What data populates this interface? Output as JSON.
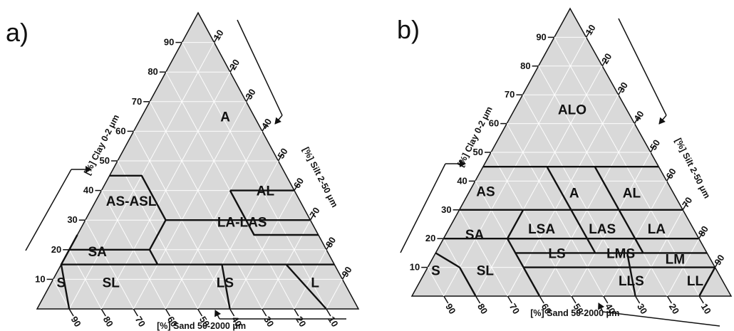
{
  "panels": [
    {
      "id": "a",
      "label": "a)",
      "clay_title": "[%] Clay 0-2 μm",
      "silt_title": "[%] Silt 2-50 μm",
      "sand_title": "[%] Sand 50-2000 μm",
      "clay_ticks": [
        "10",
        "20",
        "30",
        "40",
        "50",
        "60",
        "70",
        "80",
        "90"
      ],
      "silt_ticks": [
        "10",
        "20",
        "30",
        "40",
        "50",
        "60",
        "70",
        "80",
        "90"
      ],
      "sand_ticks": [
        "90",
        "80",
        "70",
        "60",
        "50",
        "40",
        "30",
        "20",
        "10"
      ],
      "regions": [
        {
          "name": "A",
          "clay": 65,
          "silt": 26
        },
        {
          "name": "AL",
          "clay": 40,
          "silt": 51
        },
        {
          "name": "AS-ASL",
          "clay": 36.5,
          "silt": 11
        },
        {
          "name": "LA-LAS",
          "clay": 29.5,
          "silt": 49
        },
        {
          "name": "SA",
          "clay": 19.5,
          "silt": 9
        },
        {
          "name": "SL",
          "clay": 9,
          "silt": 18.5
        },
        {
          "name": "LS",
          "clay": 9,
          "silt": 54
        },
        {
          "name": "L",
          "clay": 9,
          "silt": 82
        },
        {
          "name": "S",
          "clay": 9,
          "silt": 3
        }
      ],
      "boundaries": [
        [
          [
            45,
            0
          ],
          [
            45,
            10
          ],
          [
            30,
            25
          ]
        ],
        [
          [
            40,
            40
          ],
          [
            40,
            60
          ]
        ],
        [
          [
            40,
            40
          ],
          [
            25,
            55
          ],
          [
            25,
            75
          ]
        ],
        [
          [
            30,
            25
          ],
          [
            30,
            70
          ]
        ],
        [
          [
            30,
            25
          ],
          [
            20,
            25
          ],
          [
            20,
            0
          ]
        ],
        [
          [
            20,
            25
          ],
          [
            15,
            30
          ]
        ],
        [
          [
            25,
            0
          ],
          [
            15,
            0
          ],
          [
            15,
            30
          ]
        ],
        [
          [
            15,
            30
          ],
          [
            15,
            85
          ]
        ],
        [
          [
            15,
            0
          ],
          [
            0,
            10
          ]
        ],
        [
          [
            15,
            45
          ],
          [
            15,
            50
          ],
          [
            0,
            60
          ]
        ],
        [
          [
            15,
            70
          ],
          [
            0,
            90
          ]
        ]
      ]
    },
    {
      "id": "b",
      "label": "b)",
      "clay_title": "[%] Clay 0-2 μm",
      "silt_title": "[%] Silt 2-50 μm",
      "sand_title": "[%] Sand 50-2000 μm",
      "clay_ticks": [
        "10",
        "20",
        "30",
        "40",
        "50",
        "60",
        "70",
        "80",
        "90"
      ],
      "silt_ticks": [
        "10",
        "20",
        "30",
        "40",
        "50",
        "60",
        "70",
        "80",
        "90"
      ],
      "sand_ticks": [
        "90",
        "80",
        "70",
        "60",
        "50",
        "40",
        "30",
        "20",
        "10"
      ],
      "regions": [
        {
          "name": "ALO",
          "clay": 65,
          "silt": 18
        },
        {
          "name": "A",
          "clay": 36,
          "silt": 33
        },
        {
          "name": "AL",
          "clay": 36,
          "silt": 51
        },
        {
          "name": "AS",
          "clay": 36.5,
          "silt": 5
        },
        {
          "name": "LSA",
          "clay": 23.5,
          "silt": 29
        },
        {
          "name": "LAS",
          "clay": 23.5,
          "silt": 48
        },
        {
          "name": "LA",
          "clay": 23.5,
          "silt": 65
        },
        {
          "name": "SA",
          "clay": 21.5,
          "silt": 9
        },
        {
          "name": "LS",
          "clay": 15,
          "silt": 38
        },
        {
          "name": "LMS",
          "clay": 15,
          "silt": 58
        },
        {
          "name": "LM",
          "clay": 13,
          "silt": 76
        },
        {
          "name": "SL",
          "clay": 9,
          "silt": 18.5
        },
        {
          "name": "LLS",
          "clay": 5.5,
          "silt": 66
        },
        {
          "name": "LL",
          "clay": 5.5,
          "silt": 86
        },
        {
          "name": "S",
          "clay": 9,
          "silt": 3
        }
      ],
      "boundaries": [
        [
          [
            45,
            0
          ],
          [
            45,
            55
          ]
        ],
        [
          [
            45,
            20
          ],
          [
            30,
            35
          ]
        ],
        [
          [
            45,
            35
          ],
          [
            30,
            50
          ]
        ],
        [
          [
            30,
            0
          ],
          [
            30,
            70
          ]
        ],
        [
          [
            30,
            20
          ],
          [
            20,
            20
          ],
          [
            20,
            30
          ]
        ],
        [
          [
            30,
            35
          ],
          [
            15,
            50
          ]
        ],
        [
          [
            30,
            50
          ],
          [
            15,
            65
          ]
        ],
        [
          [
            20,
            0
          ],
          [
            20,
            80
          ]
        ],
        [
          [
            20,
            20
          ],
          [
            15,
            25
          ],
          [
            10,
            30
          ]
        ],
        [
          [
            15,
            25
          ],
          [
            15,
            85
          ]
        ],
        [
          [
            10,
            30
          ],
          [
            10,
            90
          ]
        ],
        [
          [
            15,
            0
          ],
          [
            10,
            10
          ]
        ],
        [
          [
            10,
            10
          ],
          [
            0,
            20
          ]
        ],
        [
          [
            10,
            30
          ],
          [
            0,
            40
          ]
        ],
        [
          [
            15,
            60
          ],
          [
            0,
            70
          ]
        ],
        [
          [
            10,
            90
          ],
          [
            0,
            90
          ]
        ]
      ]
    }
  ]
}
